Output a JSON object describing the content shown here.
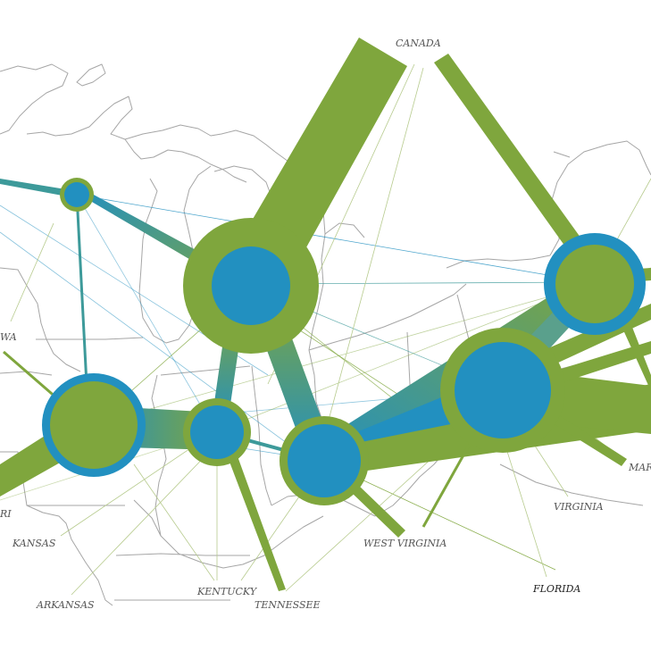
{
  "colors": {
    "green": "#7fa63d",
    "blue": "#2290c0",
    "teal": "#3d9a9a",
    "basemap": "#a6a6a6",
    "label": "#555555",
    "label_strong": "#222222"
  },
  "labels": {
    "canada": "CANADA",
    "iowa": "WA",
    "missouri": "RI",
    "kansas": "KANSAS",
    "arkansas": "ARKANSAS",
    "kentucky": "KENTUCKY",
    "tennessee": "TENNESSEE",
    "west_virginia": "WEST VIRGINIA",
    "virginia": "VIRGINIA",
    "florida": "FLORIDA",
    "maryland": "MAR"
  },
  "nodes": [
    {
      "id": "wisconsin-node",
      "outer": "green",
      "inner": "blue"
    },
    {
      "id": "michigan-node",
      "outer": "green",
      "inner": "blue"
    },
    {
      "id": "illinois-node",
      "outer": "blue",
      "inner": "green"
    },
    {
      "id": "indiana-node",
      "outer": "green",
      "inner": "blue"
    },
    {
      "id": "ohio-node",
      "outer": "green",
      "inner": "blue"
    },
    {
      "id": "pennsylvania-node",
      "outer": "green",
      "inner": "blue"
    },
    {
      "id": "new-york-node",
      "outer": "blue",
      "inner": "green"
    }
  ]
}
